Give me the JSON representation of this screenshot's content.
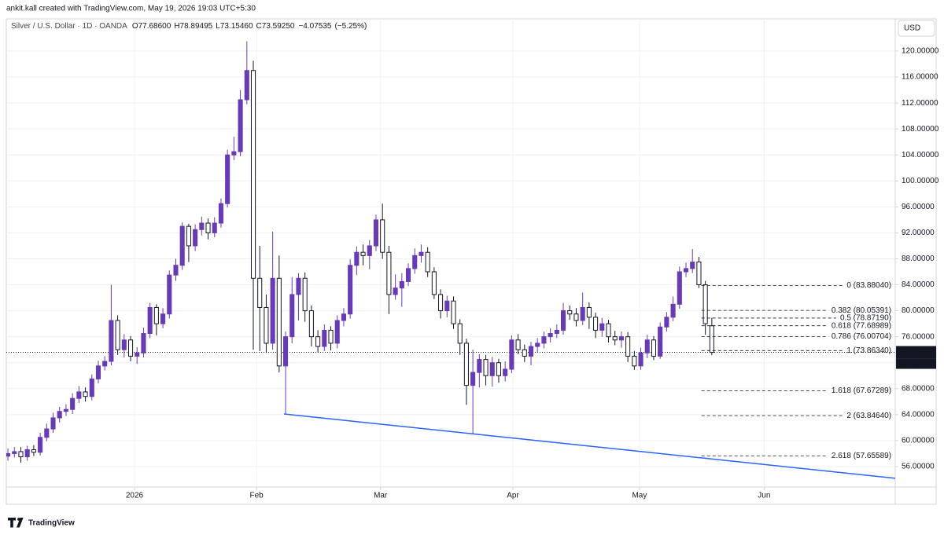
{
  "header": {
    "watermark": "ankit.kall created with TradingView.com, May 19, 2026 19:03 UTC+5:30",
    "brand": "TradingView"
  },
  "chart_data": {
    "type": "candlestick",
    "title": "Silver / U.S. Dollar · 1D · OANDA",
    "ohlc_labels": [
      {
        "value": 77.686,
        "label": "O77.68600"
      },
      {
        "value": 78.89495,
        "label": "H78.89495"
      },
      {
        "value": 73.1546,
        "label": "L73.15460"
      },
      {
        "value": 73.5925,
        "label": "C73.59250"
      }
    ],
    "change": {
      "value": -4.07535,
      "label": "−4.07535"
    },
    "change_pct": {
      "value": -5.25,
      "label": "(−5.25%)"
    },
    "currency": "USD",
    "last_price": {
      "value": 73.5925,
      "label": "73.59250"
    },
    "countdown": "07:26:41",
    "colors": {
      "up": "#673ab7",
      "down": "#ffffff",
      "down_border": "#131722"
    },
    "candles": {
      "open": [
        57.6,
        58.0,
        58.3,
        57.5,
        58.6,
        58.2,
        60.5,
        61.8,
        63.5,
        64.5,
        64.8,
        66.5,
        67.5,
        66.8,
        69.5,
        71.5,
        72.2,
        78.5,
        74.0,
        75.5,
        73.0,
        73.5,
        76.5,
        80.5,
        78.0,
        79.5,
        85.5,
        87.0,
        93.0,
        90.0,
        92.5,
        93.5,
        92.0,
        93.5,
        96.5,
        104.0,
        104.5,
        112.5,
        117.0,
        85.0,
        80.5,
        75.0,
        85.0,
        71.5,
        76.0,
        82.5,
        85.0,
        80.0,
        76.0,
        74.5,
        77.0,
        75.0,
        78.5,
        79.5,
        87.0,
        89.0,
        88.5,
        90.0,
        94.0,
        89.0,
        82.5,
        83.5,
        84.5,
        86.5,
        88.5,
        89.0,
        86.0,
        82.5,
        80.0,
        81.5,
        78.0,
        75.0,
        68.5,
        70.5,
        72.5,
        70.0,
        72.0,
        70.0,
        71.0,
        75.5,
        74.0,
        73.0,
        74.5,
        75.0,
        76.0,
        76.5,
        77.0,
        80.0,
        79.5,
        78.5,
        80.5,
        79.0,
        77.0,
        78.0,
        76.0,
        75.5,
        76.0,
        73.0,
        71.5,
        73.5,
        75.5,
        73.0,
        77.5,
        79.0,
        81.0,
        86.0,
        86.5,
        87.5,
        84.0,
        77.686
      ],
      "high": [
        58.8,
        59.0,
        59.0,
        59.2,
        59.3,
        61.2,
        62.6,
        64.3,
        65.2,
        65.6,
        67.3,
        68.4,
        68.2,
        70.2,
        72.3,
        73.0,
        84.0,
        79.3,
        76.4,
        76.1,
        74.4,
        77.4,
        81.2,
        81.0,
        80.4,
        86.2,
        88.0,
        93.6,
        93.4,
        93.3,
        94.5,
        94.2,
        94.4,
        97.3,
        104.8,
        106.8,
        114.0,
        121.5,
        118.5,
        90.0,
        82.5,
        92.2,
        88.5,
        76.8,
        85.2,
        85.8,
        85.9,
        80.8,
        77.0,
        77.9,
        77.6,
        79.3,
        80.4,
        87.9,
        89.9,
        90.2,
        90.9,
        94.8,
        96.5,
        90.0,
        85.6,
        85.8,
        87.3,
        89.6,
        90.2,
        89.8,
        86.7,
        83.3,
        82.3,
        82.2,
        78.7,
        75.7,
        74.0,
        73.3,
        73.2,
        72.9,
        72.6,
        72.2,
        76.2,
        76.4,
        74.8,
        75.2,
        75.8,
        76.8,
        77.3,
        77.9,
        81.2,
        80.8,
        80.4,
        82.8,
        81.3,
        79.7,
        78.9,
        78.6,
        76.9,
        76.8,
        76.7,
        73.8,
        74.3,
        76.3,
        76.1,
        78.2,
        79.8,
        82.2,
        86.8,
        87.4,
        89.5,
        88.3,
        84.6,
        78.89495
      ],
      "low": [
        56.9,
        57.4,
        56.6,
        56.9,
        57.6,
        57.7,
        59.9,
        61.2,
        62.8,
        63.8,
        64.1,
        65.8,
        66.0,
        66.2,
        68.8,
        70.8,
        71.6,
        73.2,
        72.8,
        72.2,
        71.8,
        72.8,
        75.8,
        76.2,
        77.3,
        78.8,
        84.6,
        86.3,
        87.5,
        89.2,
        91.6,
        91.0,
        91.3,
        92.8,
        95.9,
        103.2,
        103.8,
        111.8,
        74.0,
        73.8,
        73.5,
        74.0,
        70.5,
        64.1,
        75.0,
        78.5,
        78.3,
        74.5,
        73.6,
        73.8,
        73.9,
        74.2,
        77.6,
        78.8,
        85.5,
        87.0,
        86.4,
        89.2,
        88.0,
        79.5,
        81.7,
        80.6,
        83.8,
        85.7,
        87.4,
        85.2,
        81.8,
        78.8,
        79.0,
        77.2,
        73.2,
        65.5,
        61.0,
        68.2,
        68.5,
        68.3,
        68.9,
        69.1,
        70.4,
        73.3,
        72.1,
        71.6,
        73.6,
        74.2,
        75.1,
        75.8,
        76.3,
        78.6,
        77.6,
        77.8,
        77.2,
        75.8,
        76.0,
        75.1,
        74.7,
        74.3,
        72.1,
        70.9,
        70.9,
        72.7,
        72.4,
        72.6,
        76.8,
        78.4,
        80.3,
        85.2,
        85.8,
        83.5,
        76.3,
        73.1546
      ],
      "close": [
        58.0,
        58.3,
        57.5,
        58.6,
        58.2,
        60.5,
        61.8,
        63.5,
        64.5,
        64.8,
        66.5,
        67.5,
        66.8,
        69.5,
        71.5,
        72.2,
        78.5,
        74.0,
        75.5,
        73.0,
        73.5,
        76.5,
        80.5,
        78.0,
        79.5,
        85.5,
        87.0,
        93.0,
        90.0,
        92.5,
        93.5,
        92.0,
        93.5,
        96.5,
        104.0,
        104.5,
        112.5,
        117.0,
        85.0,
        80.5,
        75.0,
        85.0,
        71.5,
        76.0,
        82.5,
        85.0,
        80.0,
        76.0,
        74.5,
        77.0,
        75.0,
        78.5,
        79.5,
        87.0,
        89.0,
        88.5,
        90.0,
        94.0,
        89.0,
        82.5,
        83.5,
        84.5,
        86.5,
        88.5,
        89.0,
        86.0,
        82.5,
        80.0,
        81.5,
        78.0,
        75.0,
        68.5,
        70.5,
        72.5,
        70.0,
        72.0,
        70.0,
        71.0,
        75.5,
        74.0,
        73.0,
        74.5,
        75.0,
        76.0,
        76.5,
        77.0,
        80.0,
        79.5,
        78.5,
        80.5,
        79.0,
        77.0,
        78.0,
        76.0,
        75.5,
        76.0,
        73.0,
        71.5,
        73.5,
        75.5,
        73.0,
        77.5,
        79.0,
        81.0,
        86.0,
        86.5,
        87.5,
        84.0,
        78.0,
        73.5925
      ]
    },
    "xlim": [
      -0.25,
      137.4
    ],
    "xticks": [
      {
        "value": 19.6,
        "label": "2026"
      },
      {
        "value": 38.5,
        "label": "Feb"
      },
      {
        "value": 57.7,
        "label": "Mar"
      },
      {
        "value": 78.2,
        "label": "Apr"
      },
      {
        "value": 97.8,
        "label": "May"
      },
      {
        "value": 117.1,
        "label": "Jun"
      }
    ],
    "ylim": [
      52.85,
      124.96
    ],
    "yticks": [
      {
        "value": 56,
        "label": "56.00000"
      },
      {
        "value": 60,
        "label": "60.00000"
      },
      {
        "value": 64,
        "label": "64.00000"
      },
      {
        "value": 68,
        "label": "68.00000"
      },
      {
        "value": 72,
        "label": "72.00000"
      },
      {
        "value": 76,
        "label": "76.00000"
      },
      {
        "value": 80,
        "label": "80.00000"
      },
      {
        "value": 84,
        "label": "84.00000"
      },
      {
        "value": 88,
        "label": "88.00000"
      },
      {
        "value": 92,
        "label": "92.00000"
      },
      {
        "value": 96,
        "label": "96.00000"
      },
      {
        "value": 100,
        "label": "100.00000"
      },
      {
        "value": 104,
        "label": "104.00000"
      },
      {
        "value": 108,
        "label": "108.00000"
      },
      {
        "value": 112,
        "label": "112.00000"
      },
      {
        "value": 116,
        "label": "116.00000"
      },
      {
        "value": 120,
        "label": "120.00000"
      }
    ],
    "grid": true,
    "trendline": {
      "x": [
        42.75,
        137.4
      ],
      "y": [
        64.1,
        54.2
      ],
      "color": "#2962ff"
    },
    "fibonacci": {
      "x": [
        107.4,
        136.8
      ],
      "color": "#131722",
      "levels": [
        {
          "value": 83.8804,
          "label": "0 (83.88040)"
        },
        {
          "value": 80.05391,
          "label": "0.382 (80.05391)"
        },
        {
          "value": 78.8719,
          "label": "0.5 (78.87190)"
        },
        {
          "value": 77.68989,
          "label": "0.618 (77.68989)"
        },
        {
          "value": 76.00704,
          "label": "0.786 (76.00704)"
        },
        {
          "value": 73.8634,
          "label": "1 (73.86340)"
        },
        {
          "value": 67.67289,
          "label": "1.618 (67.67289)"
        },
        {
          "value": 63.8464,
          "label": "2 (63.84640)"
        },
        {
          "value": 57.65589,
          "label": "2.618 (57.65589)"
        }
      ]
    }
  }
}
